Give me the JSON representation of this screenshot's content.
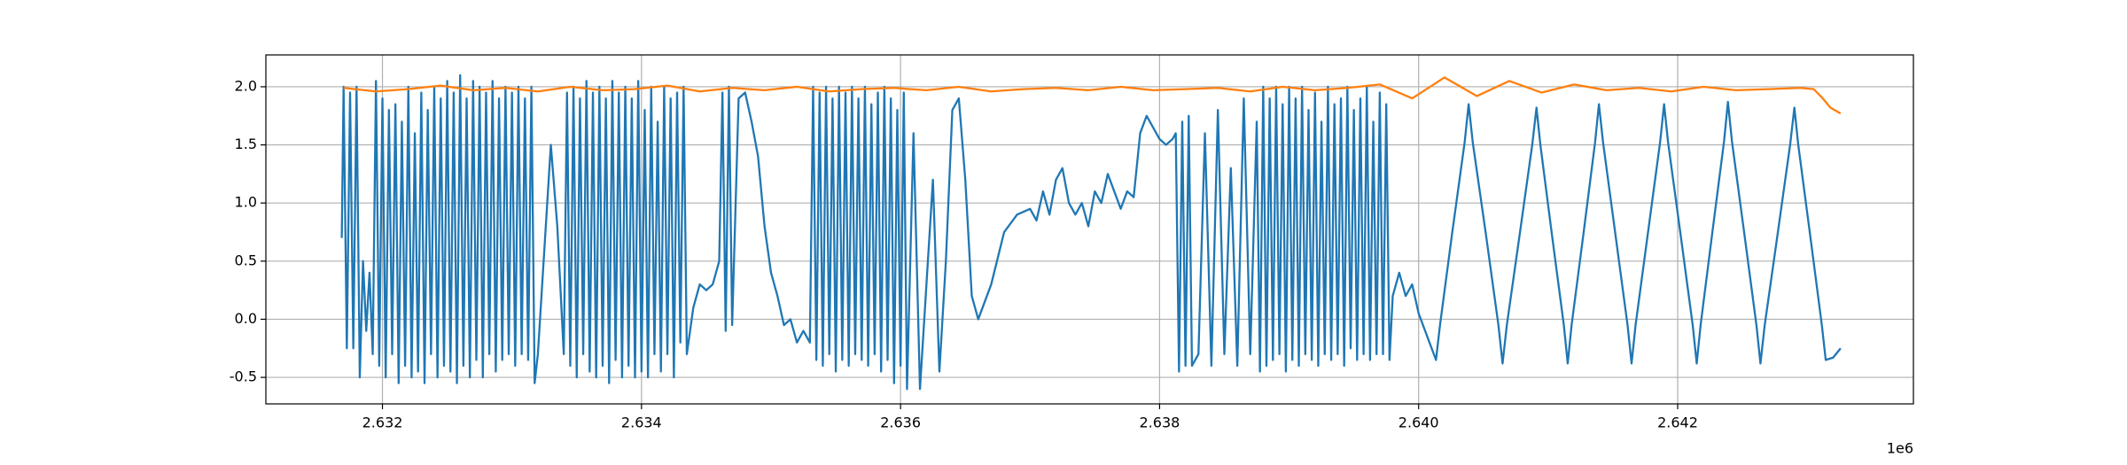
{
  "chart_data": {
    "type": "line",
    "x_offset_label": "1e6",
    "xlim": [
      2631100,
      2643820
    ],
    "ylim": [
      -0.728,
      2.274
    ],
    "xticks": [
      {
        "value": 2632000,
        "label": "2.632"
      },
      {
        "value": 2634000,
        "label": "2.634"
      },
      {
        "value": 2636000,
        "label": "2.636"
      },
      {
        "value": 2638000,
        "label": "2.638"
      },
      {
        "value": 2640000,
        "label": "2.640"
      },
      {
        "value": 2642000,
        "label": "2.642"
      }
    ],
    "yticks": [
      -0.5,
      {
        "value": 0,
        "label": "0.0"
      },
      0.5,
      {
        "value": 1,
        "label": "1.0"
      },
      1.5,
      {
        "value": 2,
        "label": "2.0"
      }
    ],
    "grid": true,
    "series": [
      {
        "color": "#1f77b4",
        "x": [
          2631686,
          2631700,
          2631725,
          2631750,
          2631775,
          2631800,
          2631825,
          2631850,
          2631875,
          2631900,
          2631925,
          2631950,
          2631975,
          2632000,
          2632025,
          2632050,
          2632075,
          2632100,
          2632125,
          2632150,
          2632175,
          2632200,
          2632225,
          2632250,
          2632275,
          2632300,
          2632325,
          2632350,
          2632375,
          2632400,
          2632425,
          2632450,
          2632475,
          2632500,
          2632525,
          2632550,
          2632575,
          2632600,
          2632625,
          2632650,
          2632675,
          2632700,
          2632725,
          2632750,
          2632775,
          2632800,
          2632825,
          2632850,
          2632875,
          2632900,
          2632925,
          2632950,
          2632975,
          2633000,
          2633025,
          2633050,
          2633075,
          2633100,
          2633125,
          2633150,
          2633175,
          2633200,
          2633250,
          2633300,
          2633350,
          2633400,
          2633425,
          2633450,
          2633475,
          2633500,
          2633525,
          2633550,
          2633575,
          2633600,
          2633625,
          2633650,
          2633675,
          2633700,
          2633725,
          2633750,
          2633775,
          2633800,
          2633825,
          2633850,
          2633875,
          2633900,
          2633925,
          2633950,
          2633975,
          2634000,
          2634025,
          2634050,
          2634075,
          2634100,
          2634125,
          2634150,
          2634175,
          2634200,
          2634225,
          2634250,
          2634275,
          2634300,
          2634325,
          2634350,
          2634400,
          2634450,
          2634500,
          2634550,
          2634600,
          2634625,
          2634650,
          2634675,
          2634700,
          2634750,
          2634800,
          2634850,
          2634900,
          2634950,
          2635000,
          2635050,
          2635100,
          2635150,
          2635200,
          2635250,
          2635300,
          2635325,
          2635350,
          2635375,
          2635400,
          2635425,
          2635450,
          2635475,
          2635500,
          2635525,
          2635550,
          2635575,
          2635600,
          2635625,
          2635650,
          2635675,
          2635700,
          2635725,
          2635750,
          2635775,
          2635800,
          2635825,
          2635850,
          2635875,
          2635900,
          2635925,
          2635950,
          2635975,
          2636000,
          2636025,
          2636050,
          2636100,
          2636150,
          2636200,
          2636250,
          2636300,
          2636350,
          2636400,
          2636450,
          2636500,
          2636550,
          2636600,
          2636700,
          2636800,
          2636900,
          2637000,
          2637050,
          2637100,
          2637150,
          2637200,
          2637250,
          2637300,
          2637350,
          2637400,
          2637450,
          2637500,
          2637550,
          2637600,
          2637650,
          2637700,
          2637750,
          2637800,
          2637850,
          2637900,
          2637950,
          2638000,
          2638050,
          2638100,
          2638125,
          2638150,
          2638175,
          2638200,
          2638225,
          2638250,
          2638300,
          2638350,
          2638400,
          2638450,
          2638500,
          2638550,
          2638600,
          2638650,
          2638700,
          2638750,
          2638775,
          2638800,
          2638825,
          2638850,
          2638875,
          2638900,
          2638925,
          2638950,
          2638975,
          2639000,
          2639025,
          2639050,
          2639075,
          2639100,
          2639125,
          2639150,
          2639175,
          2639200,
          2639225,
          2639250,
          2639275,
          2639300,
          2639325,
          2639350,
          2639375,
          2639400,
          2639425,
          2639450,
          2639475,
          2639500,
          2639525,
          2639550,
          2639575,
          2639600,
          2639625,
          2639650,
          2639675,
          2639700,
          2639725,
          2639750,
          2639775,
          2639800,
          2639850,
          2639900,
          2639950,
          2640000,
          2640134,
          2640165,
          2640260,
          2640355,
          2640386,
          2640418,
          2640517,
          2640616,
          2640648,
          2640681,
          2640779,
          2640877,
          2640910,
          2640940,
          2641030,
          2641121,
          2641151,
          2641181,
          2641272,
          2641362,
          2641392,
          2641424,
          2641518,
          2641613,
          2641644,
          2641675,
          2641770,
          2641864,
          2641895,
          2641926,
          2642021,
          2642116,
          2642147,
          2642177,
          2642268,
          2642358,
          2642388,
          2642419,
          2642514,
          2642608,
          2642639,
          2642672,
          2642770,
          2642868,
          2642901,
          2642931,
          2643022,
          2643113,
          2643143,
          2643200,
          2643258
        ],
        "values": [
          0.7,
          2.0,
          -0.25,
          1.95,
          -0.25,
          2.0,
          -0.5,
          0.5,
          -0.1,
          0.4,
          -0.3,
          2.05,
          -0.4,
          1.9,
          -0.5,
          1.8,
          -0.3,
          1.85,
          -0.55,
          1.7,
          -0.4,
          2.0,
          -0.5,
          1.6,
          -0.45,
          1.95,
          -0.55,
          1.8,
          -0.3,
          2.0,
          -0.5,
          1.9,
          -0.4,
          2.05,
          -0.45,
          1.95,
          -0.55,
          2.1,
          -0.4,
          1.9,
          -0.5,
          2.05,
          -0.35,
          2.0,
          -0.5,
          1.95,
          -0.3,
          2.05,
          -0.45,
          1.9,
          -0.35,
          2.0,
          -0.3,
          1.95,
          -0.4,
          2.0,
          -0.3,
          1.9,
          -0.35,
          2.0,
          -0.55,
          -0.3,
          0.6,
          1.5,
          0.8,
          -0.3,
          1.95,
          -0.4,
          2.0,
          -0.5,
          1.9,
          -0.3,
          2.05,
          -0.45,
          1.95,
          -0.5,
          2.0,
          -0.4,
          1.9,
          -0.55,
          2.05,
          -0.35,
          1.95,
          -0.5,
          2.0,
          -0.4,
          1.9,
          -0.5,
          2.05,
          -0.45,
          1.8,
          -0.5,
          2.0,
          -0.3,
          1.7,
          -0.45,
          2.0,
          -0.3,
          1.9,
          -0.5,
          1.95,
          -0.2,
          2.0,
          -0.3,
          0.1,
          0.3,
          0.25,
          0.3,
          0.5,
          1.95,
          -0.1,
          2.0,
          -0.05,
          1.9,
          1.95,
          1.7,
          1.4,
          0.8,
          0.4,
          0.2,
          -0.05,
          0.0,
          -0.2,
          -0.1,
          -0.2,
          2.0,
          -0.35,
          1.95,
          -0.4,
          2.0,
          -0.3,
          1.9,
          -0.45,
          2.0,
          -0.35,
          1.95,
          -0.4,
          2.0,
          -0.3,
          1.9,
          -0.35,
          2.0,
          -0.4,
          1.85,
          -0.3,
          1.95,
          -0.45,
          2.0,
          -0.35,
          1.9,
          -0.55,
          1.8,
          -0.4,
          1.95,
          -0.6,
          1.6,
          -0.6,
          0.3,
          1.2,
          -0.45,
          0.5,
          1.8,
          1.9,
          1.2,
          0.2,
          0.0,
          0.3,
          0.75,
          0.9,
          0.95,
          0.85,
          1.1,
          0.9,
          1.2,
          1.3,
          1.0,
          0.9,
          1.0,
          0.8,
          1.1,
          1.0,
          1.25,
          1.1,
          0.95,
          1.1,
          1.05,
          1.6,
          1.75,
          1.65,
          1.55,
          1.5,
          1.55,
          1.6,
          -0.45,
          1.7,
          -0.4,
          1.75,
          -0.4,
          -0.3,
          1.6,
          -0.4,
          1.8,
          -0.3,
          1.3,
          -0.4,
          1.9,
          -0.3,
          1.7,
          -0.45,
          2.0,
          -0.4,
          1.9,
          -0.35,
          2.0,
          -0.3,
          1.85,
          -0.45,
          2.0,
          -0.35,
          1.9,
          -0.4,
          2.0,
          -0.3,
          1.8,
          -0.35,
          1.95,
          -0.4,
          1.7,
          -0.3,
          2.0,
          -0.35,
          1.85,
          -0.3,
          1.9,
          -0.4,
          2.0,
          -0.25,
          1.8,
          -0.35,
          1.9,
          -0.3,
          2.0,
          -0.35,
          1.7,
          -0.3,
          1.95,
          -0.3,
          1.85,
          -0.35,
          0.2,
          0.4,
          0.2,
          0.3,
          0.05,
          -0.35,
          -0.05,
          0.75,
          1.52,
          1.85,
          1.52,
          0.75,
          -0.05,
          -0.38,
          -0.05,
          0.72,
          1.5,
          1.82,
          1.5,
          0.72,
          -0.05,
          -0.38,
          -0.05,
          0.73,
          1.52,
          1.85,
          1.52,
          0.74,
          -0.05,
          -0.38,
          -0.05,
          0.74,
          1.52,
          1.85,
          1.52,
          0.74,
          -0.05,
          -0.38,
          -0.05,
          0.75,
          1.53,
          1.87,
          1.53,
          0.74,
          -0.05,
          -0.38,
          -0.05,
          0.72,
          1.5,
          1.82,
          1.5,
          0.73,
          -0.05,
          -0.35,
          -0.33,
          -0.25
        ]
      },
      {
        "color": "#ff7f0e",
        "x": [
          2631700,
          2631950,
          2632200,
          2632450,
          2632700,
          2632950,
          2633200,
          2633450,
          2633700,
          2633950,
          2634200,
          2634450,
          2634700,
          2634950,
          2635200,
          2635450,
          2635700,
          2635950,
          2636200,
          2636450,
          2636700,
          2636950,
          2637200,
          2637450,
          2637700,
          2637950,
          2638200,
          2638450,
          2638700,
          2638950,
          2639200,
          2639450,
          2639700,
          2639950,
          2640200,
          2640450,
          2640700,
          2640950,
          2641200,
          2641450,
          2641700,
          2641950,
          2642200,
          2642450,
          2642700,
          2642950,
          2643050,
          2643120,
          2643180,
          2643258
        ],
        "values": [
          1.99,
          1.96,
          1.98,
          2.01,
          1.97,
          1.99,
          1.96,
          2.0,
          1.97,
          1.98,
          2.01,
          1.96,
          1.99,
          1.97,
          2.0,
          1.96,
          1.98,
          1.99,
          1.97,
          2.0,
          1.96,
          1.98,
          1.99,
          1.97,
          2.0,
          1.97,
          1.98,
          1.99,
          1.96,
          2.0,
          1.97,
          1.99,
          2.02,
          1.9,
          2.08,
          1.92,
          2.05,
          1.95,
          2.02,
          1.97,
          1.99,
          1.96,
          2.0,
          1.97,
          1.98,
          1.99,
          1.98,
          1.9,
          1.82,
          1.77
        ]
      }
    ]
  }
}
